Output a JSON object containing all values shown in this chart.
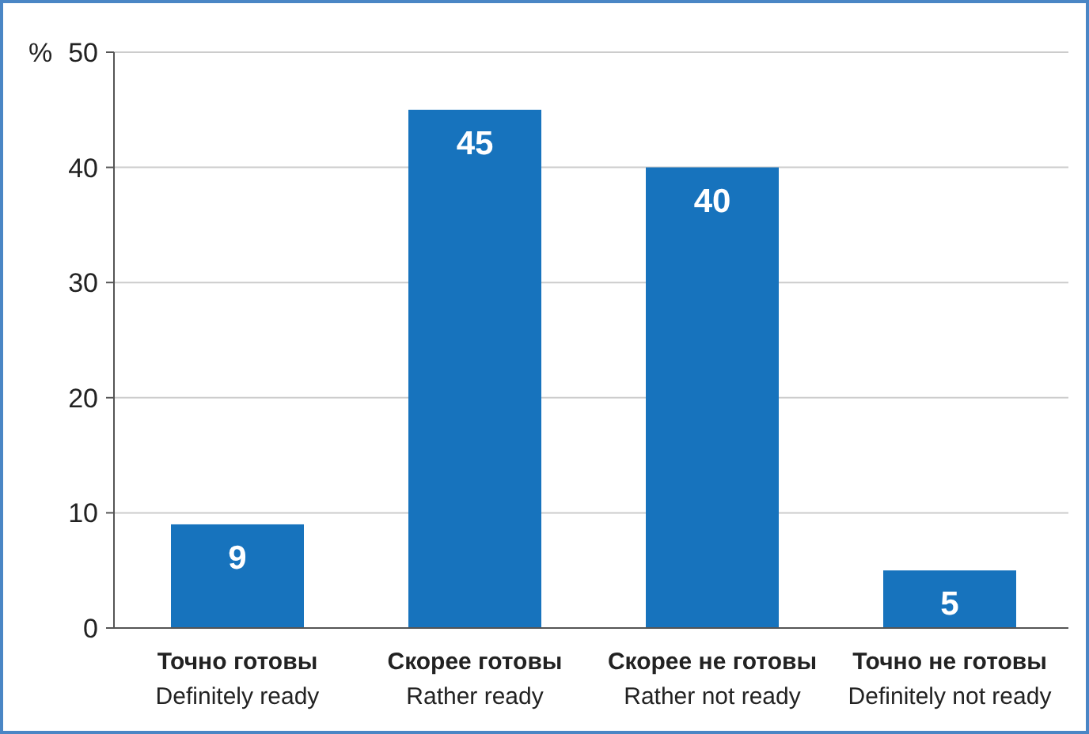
{
  "chart_data": {
    "type": "bar",
    "ylabel": "%",
    "categories": [
      "Точно готовы\nDefinitely ready",
      "Скорее готовы\nRather ready",
      "Скорее не готовы\nRather not ready",
      "Точно не готовы\nDefinitely not ready"
    ],
    "values": [
      9,
      45,
      40,
      5
    ],
    "color": "#1773bd",
    "ylim": [
      0,
      50
    ],
    "yticks": [
      0,
      10,
      20,
      30,
      40,
      50
    ],
    "grid": "y",
    "data_labels": true
  }
}
